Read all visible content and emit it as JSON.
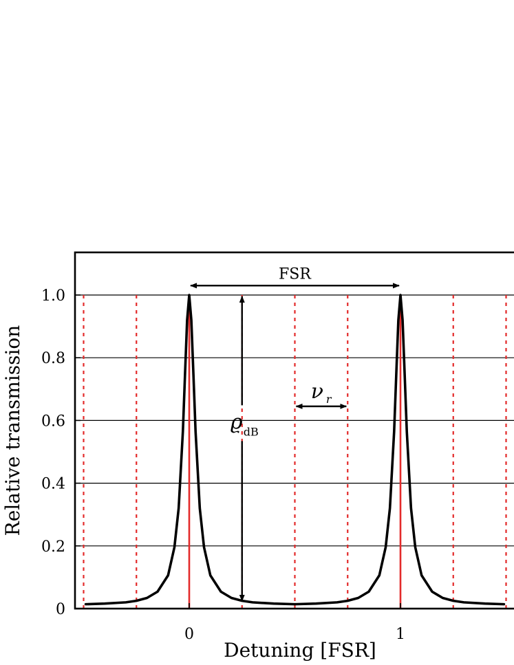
{
  "chart_data": {
    "type": "line",
    "xlabel": "Detuning [FSR]",
    "ylabel": "Relative transmission",
    "xlim": [
      -0.55,
      1.55
    ],
    "ylim": [
      0,
      1.13
    ],
    "xticks": [
      0,
      1
    ],
    "xtick_labels": [
      "0",
      "1"
    ],
    "yticks": [
      0,
      0.2,
      0.4,
      0.6,
      0.8,
      1.0
    ],
    "ytick_labels": [
      "0",
      "0.2",
      "0.4",
      "0.6",
      "0.8",
      "1.0"
    ],
    "grid": "horizontal",
    "series": [
      {
        "kind": "transmission-curve",
        "color": "#000000",
        "x": [
          -0.49,
          -0.4,
          -0.3,
          -0.25,
          -0.2,
          -0.15,
          -0.1,
          -0.07,
          -0.05,
          -0.03,
          -0.02,
          -0.01,
          0,
          0.01,
          0.02,
          0.03,
          0.05,
          0.07,
          0.1,
          0.15,
          0.2,
          0.25,
          0.3,
          0.4,
          0.5,
          0.6,
          0.7,
          0.75,
          0.8,
          0.85,
          0.9,
          0.93,
          0.95,
          0.97,
          0.98,
          0.99,
          1.0,
          1.01,
          1.02,
          1.03,
          1.05,
          1.07,
          1.1,
          1.15,
          1.2,
          1.25,
          1.3,
          1.4,
          1.49
        ],
        "y": [
          0.014,
          0.016,
          0.02,
          0.025,
          0.034,
          0.054,
          0.106,
          0.196,
          0.32,
          0.565,
          0.745,
          0.92,
          1.0,
          0.92,
          0.745,
          0.565,
          0.32,
          0.196,
          0.106,
          0.054,
          0.034,
          0.025,
          0.02,
          0.016,
          0.014,
          0.016,
          0.02,
          0.025,
          0.034,
          0.054,
          0.106,
          0.196,
          0.32,
          0.565,
          0.745,
          0.92,
          1.0,
          0.92,
          0.745,
          0.565,
          0.32,
          0.196,
          0.106,
          0.054,
          0.034,
          0.025,
          0.02,
          0.016,
          0.014
        ]
      }
    ],
    "resonance_lines": {
      "color": "#e32a2a",
      "solid_x": [
        0,
        1
      ],
      "dotted_x": [
        -0.5,
        -0.25,
        0.25,
        0.5,
        0.75,
        1.25,
        1.5
      ]
    },
    "annotations": [
      {
        "label": "FSR",
        "kind": "horizontal-double-arrow",
        "x": [
          0,
          1
        ],
        "y": 1.03
      },
      {
        "label": "ϱ",
        "subscript": "dB",
        "kind": "vertical-double-arrow",
        "x": 0.25,
        "y": [
          0.02,
          1.0
        ]
      },
      {
        "label": "ν",
        "subscript": "r",
        "kind": "horizontal-double-arrow",
        "x": [
          0.5,
          0.75
        ],
        "y": 0.645
      }
    ]
  }
}
